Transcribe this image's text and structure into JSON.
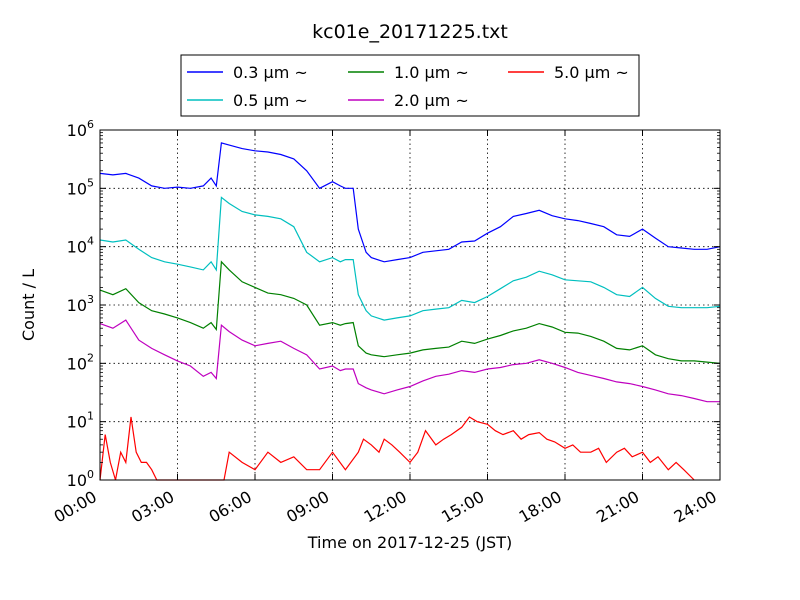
{
  "chart_data": {
    "type": "line",
    "title": "kc01e_20171225.txt",
    "xlabel": "Time on 2017-12-25 (JST)",
    "ylabel": "Count / L",
    "x_unit": "hour",
    "xlim": [
      0,
      24
    ],
    "yscale": "log",
    "ylim": [
      1,
      1000000
    ],
    "grid": true,
    "legend_position": "top-center",
    "x_ticks": [
      {
        "value": 0,
        "label": "00:00"
      },
      {
        "value": 3,
        "label": "03:00"
      },
      {
        "value": 6,
        "label": "06:00"
      },
      {
        "value": 9,
        "label": "09:00"
      },
      {
        "value": 12,
        "label": "12:00"
      },
      {
        "value": 15,
        "label": "15:00"
      },
      {
        "value": 18,
        "label": "18:00"
      },
      {
        "value": 21,
        "label": "21:00"
      },
      {
        "value": 24,
        "label": "24:00"
      }
    ],
    "y_ticks": [
      {
        "value": 1,
        "base": "10",
        "exp": "0"
      },
      {
        "value": 10,
        "base": "10",
        "exp": "1"
      },
      {
        "value": 100,
        "base": "10",
        "exp": "2"
      },
      {
        "value": 1000,
        "base": "10",
        "exp": "3"
      },
      {
        "value": 10000,
        "base": "10",
        "exp": "4"
      },
      {
        "value": 100000,
        "base": "10",
        "exp": "5"
      },
      {
        "value": 1000000,
        "base": "10",
        "exp": "6"
      }
    ],
    "series": [
      {
        "name": "0.3 µm ~",
        "color": "#0000ff",
        "x": [
          0,
          0.5,
          1,
          1.5,
          2,
          2.5,
          3,
          3.5,
          4,
          4.3,
          4.5,
          4.7,
          5,
          5.5,
          6,
          6.5,
          7,
          7.5,
          8,
          8.5,
          9,
          9.3,
          9.5,
          9.8,
          10,
          10.3,
          10.5,
          11,
          11.5,
          12,
          12.5,
          13,
          13.5,
          14,
          14.5,
          15,
          15.5,
          16,
          16.5,
          17,
          17.5,
          18,
          18.5,
          19,
          19.5,
          20,
          20.5,
          21,
          21.5,
          22,
          22.5,
          23,
          23.5,
          24
        ],
        "y": [
          180000,
          170000,
          180000,
          150000,
          110000,
          100000,
          105000,
          100000,
          110000,
          150000,
          110000,
          600000,
          550000,
          480000,
          440000,
          420000,
          380000,
          320000,
          200000,
          100000,
          130000,
          110000,
          100000,
          100000,
          20000,
          8000,
          6500,
          5500,
          6000,
          6500,
          8000,
          8500,
          9000,
          12000,
          12500,
          17000,
          22000,
          33000,
          37000,
          42000,
          34000,
          30000,
          28000,
          25000,
          22000,
          16000,
          15000,
          20000,
          14000,
          10000,
          9500,
          9000,
          9000,
          10000
        ]
      },
      {
        "name": "0.5 µm ~",
        "color": "#00bfbf",
        "x": [
          0,
          0.5,
          1,
          1.5,
          2,
          2.5,
          3,
          3.5,
          4,
          4.3,
          4.5,
          4.7,
          5,
          5.5,
          6,
          6.5,
          7,
          7.5,
          8,
          8.5,
          9,
          9.3,
          9.5,
          9.8,
          10,
          10.3,
          10.5,
          11,
          11.5,
          12,
          12.5,
          13,
          13.5,
          14,
          14.5,
          15,
          15.5,
          16,
          16.5,
          17,
          17.5,
          18,
          18.5,
          19,
          19.5,
          20,
          20.5,
          21,
          21.5,
          22,
          22.5,
          23,
          23.5,
          24
        ],
        "y": [
          13000,
          12000,
          13000,
          9000,
          6500,
          5500,
          5000,
          4500,
          4000,
          5500,
          4000,
          70000,
          55000,
          40000,
          35000,
          33000,
          30000,
          22000,
          8000,
          5500,
          6500,
          5500,
          6000,
          6000,
          1500,
          800,
          650,
          550,
          600,
          650,
          800,
          850,
          900,
          1200,
          1100,
          1400,
          1900,
          2600,
          3000,
          3800,
          3300,
          2700,
          2600,
          2500,
          2000,
          1500,
          1400,
          2000,
          1300,
          950,
          900,
          900,
          900,
          950
        ]
      },
      {
        "name": "1.0 µm ~",
        "color": "#008000",
        "x": [
          0,
          0.5,
          1,
          1.5,
          2,
          2.5,
          3,
          3.5,
          4,
          4.3,
          4.5,
          4.7,
          5,
          5.5,
          6,
          6.5,
          7,
          7.5,
          8,
          8.5,
          9,
          9.3,
          9.5,
          9.8,
          10,
          10.3,
          10.5,
          11,
          11.5,
          12,
          12.5,
          13,
          13.5,
          14,
          14.5,
          15,
          15.5,
          16,
          16.5,
          17,
          17.5,
          18,
          18.5,
          19,
          19.5,
          20,
          20.5,
          21,
          21.5,
          22,
          22.5,
          23,
          23.5,
          24
        ],
        "y": [
          1800,
          1500,
          1900,
          1100,
          800,
          700,
          600,
          500,
          400,
          500,
          380,
          5500,
          4000,
          2500,
          2000,
          1600,
          1500,
          1300,
          1000,
          450,
          500,
          450,
          480,
          500,
          200,
          150,
          140,
          130,
          140,
          150,
          170,
          180,
          190,
          240,
          220,
          260,
          300,
          360,
          400,
          480,
          420,
          340,
          330,
          290,
          240,
          180,
          170,
          200,
          140,
          120,
          110,
          110,
          105,
          100
        ]
      },
      {
        "name": "2.0 µm ~",
        "color": "#bf00bf",
        "x": [
          0,
          0.5,
          1,
          1.5,
          2,
          2.5,
          3,
          3.5,
          4,
          4.3,
          4.5,
          4.7,
          5,
          5.5,
          6,
          6.5,
          7,
          7.5,
          8,
          8.5,
          9,
          9.3,
          9.5,
          9.8,
          10,
          10.3,
          10.5,
          11,
          11.5,
          12,
          12.5,
          13,
          13.5,
          14,
          14.5,
          15,
          15.5,
          16,
          16.5,
          17,
          17.5,
          18,
          18.5,
          19,
          19.5,
          20,
          20.5,
          21,
          21.5,
          22,
          22.5,
          23,
          23.5,
          24
        ],
        "y": [
          480,
          400,
          550,
          250,
          180,
          140,
          110,
          90,
          60,
          70,
          55,
          450,
          350,
          250,
          200,
          220,
          240,
          180,
          140,
          80,
          90,
          75,
          80,
          80,
          45,
          38,
          35,
          30,
          35,
          40,
          50,
          60,
          65,
          75,
          70,
          80,
          85,
          95,
          100,
          115,
          100,
          85,
          70,
          62,
          55,
          48,
          45,
          40,
          35,
          30,
          28,
          25,
          22,
          22
        ]
      },
      {
        "name": "5.0 µm ~",
        "color": "#ff0000",
        "x": [
          0,
          0.2,
          0.4,
          0.6,
          0.8,
          1,
          1.2,
          1.4,
          1.6,
          1.8,
          2,
          2.2,
          2.4,
          2.6,
          4.8,
          5,
          5.5,
          6,
          6.5,
          7,
          7.5,
          8,
          8.5,
          9,
          9.5,
          10,
          10.2,
          10.5,
          10.8,
          11,
          11.3,
          11.6,
          12,
          12.3,
          12.6,
          13,
          13.3,
          13.6,
          14,
          14.3,
          14.6,
          15,
          15.3,
          15.6,
          16,
          16.3,
          16.6,
          17,
          17.3,
          17.6,
          18,
          18.3,
          18.6,
          19,
          19.3,
          19.6,
          20,
          20.3,
          20.6,
          21,
          21.3,
          21.6,
          22,
          22.3,
          22.6,
          23
        ],
        "y": [
          1,
          6,
          2,
          1,
          3,
          2,
          12,
          3,
          2,
          2,
          1.5,
          1,
          1,
          1,
          1,
          3,
          2,
          1.5,
          3,
          2,
          2.5,
          1.5,
          1.5,
          3,
          1.5,
          3,
          5,
          4,
          3,
          5,
          4,
          3,
          2,
          3,
          7,
          4,
          5,
          6,
          8,
          12,
          10,
          9,
          7,
          6,
          7,
          5,
          6,
          6.5,
          5,
          4.5,
          3.5,
          4,
          3,
          3,
          3.5,
          2,
          3,
          3.5,
          2.5,
          3,
          2,
          2.5,
          1.5,
          2,
          1.5,
          1
        ]
      }
    ]
  }
}
